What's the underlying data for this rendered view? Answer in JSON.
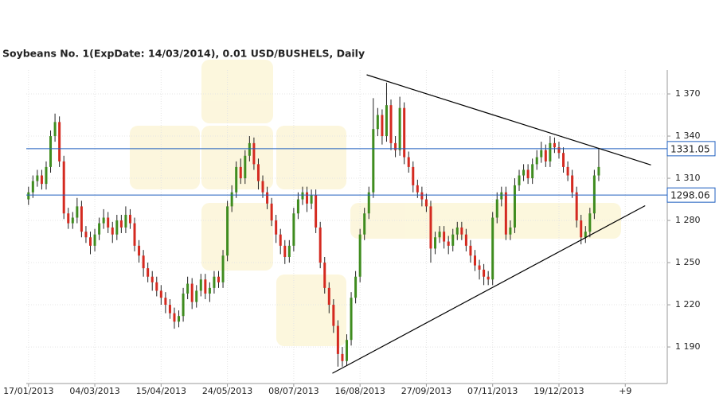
{
  "chart_data": {
    "type": "candlestick",
    "title": "Soybeans  No. 1(ExpDate: 14/03/2014), 0.01 USD/BUSHELS, Daily",
    "x": [
      0,
      2,
      4,
      6,
      8,
      10,
      12,
      14,
      16,
      18,
      20,
      22,
      24,
      26,
      28,
      30,
      32,
      34,
      36,
      38,
      40,
      42,
      44,
      46,
      48,
      50,
      52,
      54,
      56,
      58,
      60,
      62,
      64,
      66,
      68,
      70,
      72,
      74,
      76,
      78,
      80,
      82,
      84,
      86,
      88,
      90,
      92,
      94,
      96,
      98,
      100,
      102,
      104,
      106,
      108,
      110,
      112,
      114,
      116,
      118,
      120,
      122,
      124,
      126,
      128,
      130,
      132,
      134,
      136,
      138,
      140,
      142,
      144,
      146,
      148,
      150,
      152,
      154,
      156,
      158,
      160,
      162,
      164,
      166,
      168,
      170,
      172,
      174,
      176,
      178,
      180,
      182,
      184,
      186,
      188,
      190,
      192,
      194,
      196,
      198,
      200,
      202,
      204,
      206,
      208,
      210,
      212,
      214,
      216,
      218,
      220,
      222,
      224,
      226,
      228,
      230,
      232,
      234,
      236,
      238,
      240,
      242,
      244,
      246,
      248,
      250,
      252,
      254,
      256,
      258
    ],
    "open": [
      1295,
      1300,
      1308,
      1312,
      1306,
      1318,
      1340,
      1350,
      1322,
      1285,
      1278,
      1282,
      1290,
      1272,
      1268,
      1262,
      1270,
      1278,
      1282,
      1275,
      1270,
      1280,
      1275,
      1284,
      1278,
      1262,
      1255,
      1246,
      1240,
      1236,
      1230,
      1225,
      1220,
      1214,
      1208,
      1212,
      1228,
      1235,
      1222,
      1230,
      1238,
      1228,
      1232,
      1240,
      1236,
      1255,
      1290,
      1300,
      1318,
      1310,
      1326,
      1335,
      1320,
      1308,
      1300,
      1292,
      1280,
      1270,
      1262,
      1254,
      1262,
      1285,
      1295,
      1300,
      1292,
      1298,
      1275,
      1250,
      1232,
      1220,
      1205,
      1185,
      1180,
      1195,
      1225,
      1240,
      1270,
      1285,
      1300,
      1345,
      1355,
      1340,
      1362,
      1335,
      1330,
      1360,
      1325,
      1318,
      1305,
      1300,
      1295,
      1290,
      1260,
      1268,
      1272,
      1265,
      1262,
      1270,
      1275,
      1270,
      1262,
      1255,
      1248,
      1245,
      1240,
      1238,
      1282,
      1295,
      1300,
      1270,
      1275,
      1305,
      1312,
      1316,
      1310,
      1320,
      1325,
      1330,
      1322,
      1335,
      1332,
      1328,
      1318,
      1312,
      1300,
      1280,
      1268,
      1272,
      1285,
      1312
    ],
    "high": [
      1304,
      1312,
      1316,
      1316,
      1322,
      1344,
      1356,
      1354,
      1326,
      1289,
      1286,
      1296,
      1294,
      1276,
      1272,
      1274,
      1282,
      1288,
      1286,
      1279,
      1284,
      1284,
      1290,
      1288,
      1282,
      1266,
      1259,
      1250,
      1244,
      1240,
      1234,
      1229,
      1224,
      1218,
      1216,
      1232,
      1240,
      1239,
      1234,
      1242,
      1242,
      1236,
      1244,
      1244,
      1259,
      1294,
      1305,
      1322,
      1324,
      1330,
      1340,
      1339,
      1324,
      1312,
      1304,
      1296,
      1284,
      1274,
      1266,
      1266,
      1289,
      1300,
      1304,
      1304,
      1302,
      1302,
      1279,
      1254,
      1236,
      1224,
      1209,
      1190,
      1199,
      1229,
      1244,
      1274,
      1289,
      1304,
      1367,
      1360,
      1359,
      1378,
      1366,
      1340,
      1368,
      1364,
      1329,
      1322,
      1309,
      1304,
      1299,
      1294,
      1272,
      1276,
      1276,
      1269,
      1274,
      1279,
      1279,
      1274,
      1266,
      1259,
      1252,
      1249,
      1244,
      1286,
      1300,
      1304,
      1304,
      1280,
      1310,
      1316,
      1320,
      1320,
      1324,
      1330,
      1336,
      1334,
      1340,
      1339,
      1336,
      1332,
      1322,
      1316,
      1304,
      1284,
      1276,
      1289,
      1316,
      1331
    ],
    "low": [
      1291,
      1296,
      1304,
      1302,
      1302,
      1314,
      1336,
      1318,
      1281,
      1274,
      1274,
      1278,
      1268,
      1264,
      1256,
      1258,
      1266,
      1274,
      1271,
      1264,
      1266,
      1271,
      1271,
      1274,
      1258,
      1250,
      1240,
      1236,
      1230,
      1226,
      1220,
      1214,
      1210,
      1203,
      1204,
      1208,
      1224,
      1217,
      1218,
      1226,
      1224,
      1222,
      1228,
      1232,
      1232,
      1251,
      1286,
      1296,
      1306,
      1306,
      1322,
      1316,
      1302,
      1296,
      1288,
      1276,
      1264,
      1256,
      1249,
      1250,
      1258,
      1281,
      1291,
      1286,
      1288,
      1271,
      1246,
      1228,
      1214,
      1200,
      1176,
      1176,
      1177,
      1191,
      1221,
      1236,
      1266,
      1281,
      1296,
      1340,
      1334,
      1336,
      1330,
      1325,
      1326,
      1320,
      1314,
      1300,
      1296,
      1290,
      1286,
      1250,
      1256,
      1264,
      1260,
      1256,
      1258,
      1266,
      1266,
      1258,
      1250,
      1244,
      1238,
      1234,
      1234,
      1234,
      1278,
      1290,
      1266,
      1266,
      1271,
      1301,
      1308,
      1306,
      1306,
      1316,
      1321,
      1318,
      1318,
      1328,
      1324,
      1314,
      1308,
      1296,
      1275,
      1263,
      1264,
      1268,
      1281,
      1308
    ],
    "close": [
      1300,
      1308,
      1312,
      1306,
      1318,
      1340,
      1350,
      1322,
      1285,
      1278,
      1282,
      1290,
      1272,
      1268,
      1262,
      1270,
      1278,
      1282,
      1275,
      1270,
      1280,
      1275,
      1284,
      1278,
      1262,
      1255,
      1246,
      1240,
      1236,
      1230,
      1225,
      1220,
      1214,
      1208,
      1212,
      1228,
      1235,
      1222,
      1230,
      1238,
      1228,
      1232,
      1240,
      1236,
      1255,
      1290,
      1300,
      1318,
      1310,
      1326,
      1335,
      1320,
      1308,
      1300,
      1292,
      1280,
      1270,
      1262,
      1254,
      1262,
      1285,
      1295,
      1300,
      1292,
      1298,
      1275,
      1250,
      1232,
      1220,
      1205,
      1185,
      1180,
      1195,
      1225,
      1240,
      1270,
      1285,
      1300,
      1345,
      1355,
      1340,
      1362,
      1335,
      1330,
      1360,
      1325,
      1318,
      1305,
      1300,
      1295,
      1290,
      1260,
      1268,
      1272,
      1265,
      1262,
      1270,
      1275,
      1270,
      1262,
      1255,
      1248,
      1245,
      1240,
      1238,
      1282,
      1295,
      1300,
      1270,
      1275,
      1305,
      1312,
      1316,
      1310,
      1320,
      1325,
      1330,
      1322,
      1335,
      1332,
      1328,
      1318,
      1312,
      1300,
      1280,
      1268,
      1272,
      1285,
      1312,
      1318
    ],
    "up_color": "#3f8c1f",
    "down_color": "#d42a20",
    "xlim": [
      -1,
      289
    ],
    "xticks": [
      {
        "value": 0,
        "label": "17/01/2013"
      },
      {
        "value": 30,
        "label": "04/03/2013"
      },
      {
        "value": 60,
        "label": "15/04/2013"
      },
      {
        "value": 90,
        "label": "24/05/2013"
      },
      {
        "value": 120,
        "label": "08/07/2013"
      },
      {
        "value": 150,
        "label": "16/08/2013"
      },
      {
        "value": 180,
        "label": "27/09/2013"
      },
      {
        "value": 210,
        "label": "07/11/2013"
      },
      {
        "value": 240,
        "label": "19/12/2013"
      },
      {
        "value": 270,
        "label": "+9"
      }
    ],
    "ylim": [
      1164,
      1387
    ],
    "yticks": [
      {
        "value": 1190,
        "label": "1 190"
      },
      {
        "value": 1220,
        "label": "1 220"
      },
      {
        "value": 1250,
        "label": "1 250"
      },
      {
        "value": 1280,
        "label": "1 280"
      },
      {
        "value": 1310,
        "label": "1 310"
      },
      {
        "value": 1340,
        "label": "1 340"
      },
      {
        "value": 1370,
        "label": "1 370"
      }
    ],
    "levels": [
      1331.05,
      1298.06
    ],
    "level_color": "#1f5fbf",
    "trendlines": [
      {
        "x": [
          153,
          281.6
        ],
        "y": [
          1383.6,
          1319.5
        ]
      },
      {
        "x": [
          137.5,
          279
        ],
        "y": [
          1171.3,
          1290.5
        ]
      }
    ],
    "grid": true
  }
}
